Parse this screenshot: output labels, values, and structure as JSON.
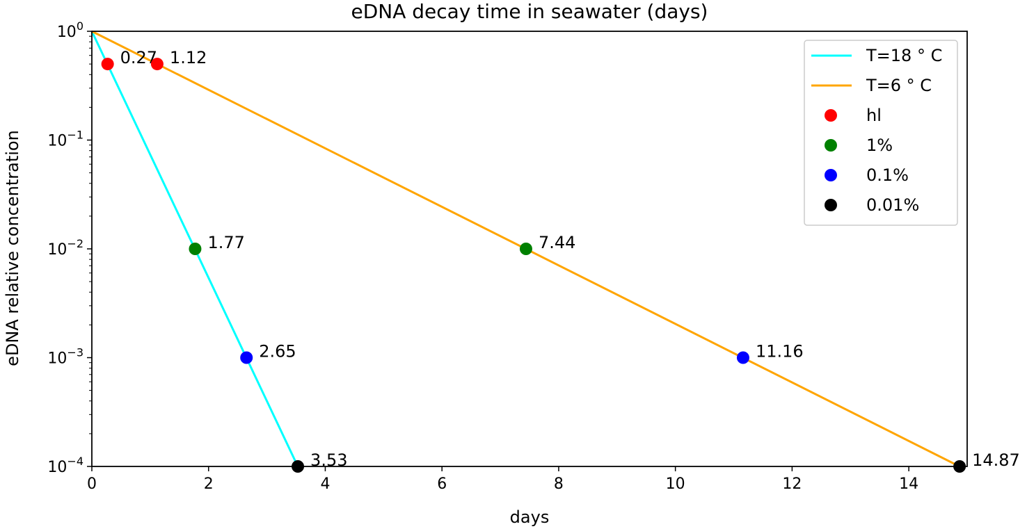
{
  "chart_data": {
    "type": "line",
    "title": "eDNA decay time in seawater (days)",
    "xlabel": "days",
    "ylabel": "eDNA relative concentration",
    "xlim": [
      0,
      15
    ],
    "ylim": [
      0.0001,
      1
    ],
    "yscale": "log",
    "grid": false,
    "legend_position": "top-right",
    "x_ticks": [
      0,
      2,
      4,
      6,
      8,
      10,
      12,
      14
    ],
    "y_ticks": [
      {
        "base": "10",
        "exp": "−4",
        "value": 0.0001
      },
      {
        "base": "10",
        "exp": "−3",
        "value": 0.001
      },
      {
        "base": "10",
        "exp": "−2",
        "value": 0.01
      },
      {
        "base": "10",
        "exp": "−1",
        "value": 0.1
      },
      {
        "base": "10",
        "exp": "0",
        "value": 1
      }
    ],
    "series": [
      {
        "name": "T=18 ° C",
        "color": "#00ffff",
        "x": [
          0,
          3.53
        ],
        "y": [
          1,
          0.0001
        ]
      },
      {
        "name": "T=6 ° C",
        "color": "#ffa500",
        "x": [
          0,
          14.87
        ],
        "y": [
          1,
          0.0001
        ]
      }
    ],
    "markers": [
      {
        "name": "hl",
        "color": "#ff0000",
        "level": 0.5,
        "points": [
          {
            "x": 0.27,
            "label": "0.27"
          },
          {
            "x": 1.12,
            "label": "1.12"
          }
        ]
      },
      {
        "name": "1%",
        "color": "#008000",
        "level": 0.01,
        "points": [
          {
            "x": 1.77,
            "label": "1.77"
          },
          {
            "x": 7.44,
            "label": "7.44"
          }
        ]
      },
      {
        "name": "0.1%",
        "color": "#0000ff",
        "level": 0.001,
        "points": [
          {
            "x": 2.65,
            "label": "2.65"
          },
          {
            "x": 11.16,
            "label": "11.16"
          }
        ]
      },
      {
        "name": "0.01%",
        "color": "#000000",
        "level": 0.0001,
        "points": [
          {
            "x": 3.53,
            "label": "3.53"
          },
          {
            "x": 14.87,
            "label": "14.87"
          }
        ]
      }
    ]
  }
}
